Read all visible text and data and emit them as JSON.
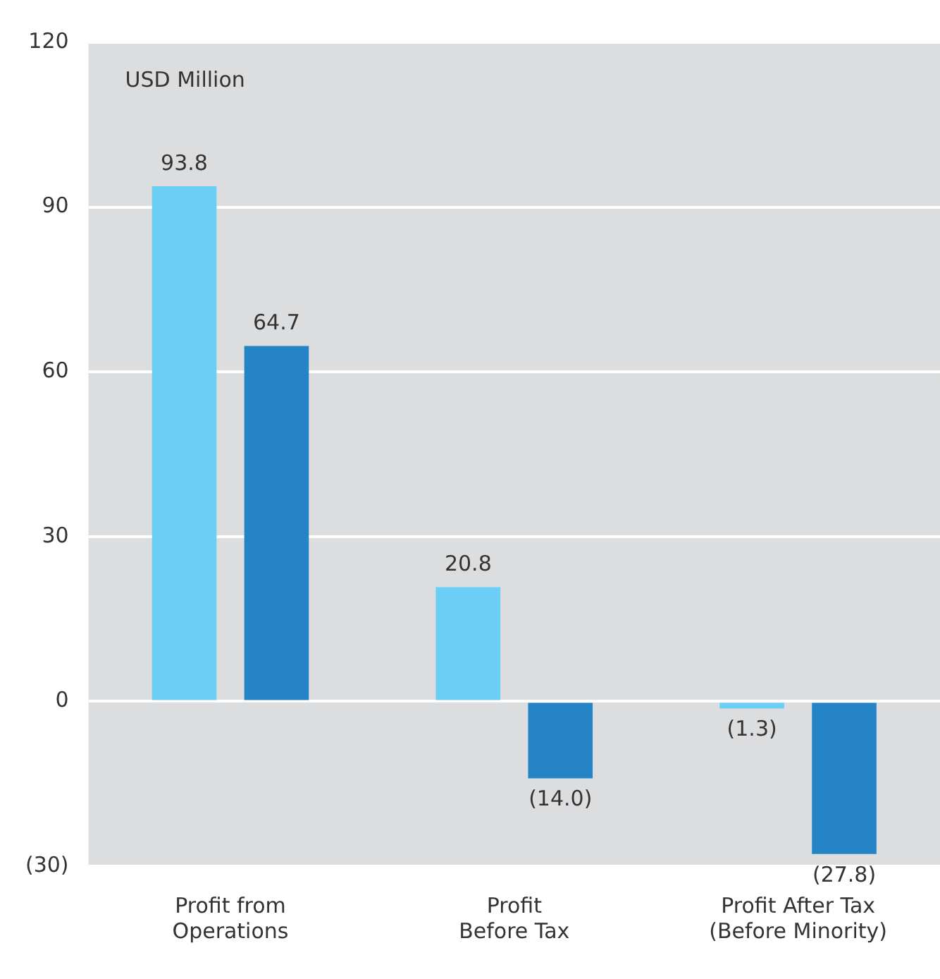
{
  "chart_data": {
    "type": "bar",
    "categories": [
      "Profit from\nOperations",
      "Profit\nBefore Tax",
      "Profit After Tax\n(Before Minority)"
    ],
    "series": [
      {
        "color": "#6bcef5",
        "values": [
          93.8,
          20.8,
          -1.3
        ],
        "value_labels": [
          "93.8",
          "20.8",
          "(1.3)"
        ]
      },
      {
        "color": "#2484c6",
        "values": [
          64.7,
          -14.0,
          -27.8
        ],
        "value_labels": [
          "64.7",
          "(14.0)",
          "(27.8)"
        ]
      }
    ],
    "ylim": [
      -30,
      120
    ],
    "yticks": [
      {
        "value": -30,
        "label": "(30)"
      },
      0,
      30,
      60,
      90,
      120
    ],
    "grid": "y",
    "legend": false,
    "annotations": [
      "USD Million"
    ]
  }
}
